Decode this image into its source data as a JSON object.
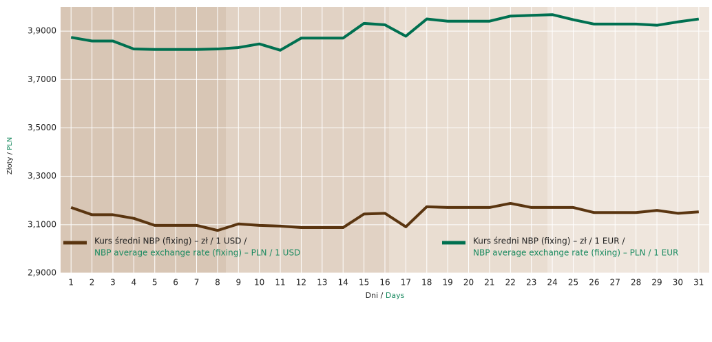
{
  "chart_data": {
    "type": "line",
    "y_label": [
      "Złoty /",
      "PLN"
    ],
    "x_label": [
      "Dni /",
      "Days"
    ],
    "categories": [
      1,
      2,
      3,
      4,
      5,
      6,
      7,
      8,
      9,
      10,
      11,
      12,
      13,
      14,
      15,
      16,
      17,
      18,
      19,
      20,
      21,
      22,
      23,
      24,
      25,
      26,
      27,
      28,
      29,
      30,
      31
    ],
    "series": [
      {
        "name": "Kurs średni NBP (fixing) – zł / 1 USD /",
        "name_en": "NBP average exchange rate (fixing) – PLN / 1 USD",
        "color": "#5a3510",
        "values": [
          3.171,
          3.141,
          3.141,
          3.126,
          3.097,
          3.097,
          3.097,
          3.076,
          3.103,
          3.097,
          3.094,
          3.088,
          3.088,
          3.088,
          3.144,
          3.147,
          3.091,
          3.174,
          3.171,
          3.171,
          3.171,
          3.188,
          3.171,
          3.171,
          3.171,
          3.15,
          3.15,
          3.15,
          3.159,
          3.147,
          3.153
        ]
      },
      {
        "name": "Kurs średni NBP (fixing) – zł / 1 EUR /",
        "name_en": "NBP average exchange rate (fixing) – PLN / 1 EUR",
        "color": "#007050",
        "values": [
          3.874,
          3.859,
          3.859,
          3.826,
          3.824,
          3.824,
          3.824,
          3.826,
          3.832,
          3.847,
          3.821,
          3.871,
          3.871,
          3.871,
          3.932,
          3.926,
          3.879,
          3.95,
          3.941,
          3.941,
          3.941,
          3.962,
          3.965,
          3.968,
          3.947,
          3.929,
          3.929,
          3.929,
          3.924,
          3.938,
          3.95
        ]
      }
    ],
    "ylim": [
      2.9,
      4.0
    ],
    "yticks": [
      {
        "value": 2.9,
        "label": "2,9000"
      },
      {
        "value": 3.1,
        "label": "3,1000"
      },
      {
        "value": 3.3,
        "label": "3,3000"
      },
      {
        "value": 3.5,
        "label": "3,5000"
      },
      {
        "value": 3.7,
        "label": "3,7000"
      },
      {
        "value": 3.9,
        "label": "3,9000"
      }
    ],
    "grid": true
  }
}
